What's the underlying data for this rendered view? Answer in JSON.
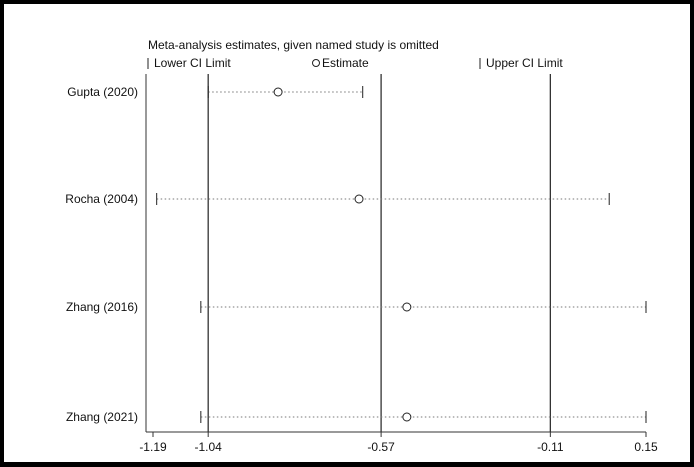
{
  "chart_data": {
    "type": "scatter",
    "title": "Meta-analysis estimates, given named study is omitted",
    "legend": {
      "placement": "top",
      "items": [
        "Lower CI Limit",
        "Estimate",
        "Upper CI Limit"
      ]
    },
    "studies": [
      "Gupta (2020)",
      "Rocha (2004)",
      "Zhang (2016)",
      "Zhang (2021)"
    ],
    "estimates": [
      -0.85,
      -0.63,
      -0.5,
      -0.5
    ],
    "lower_ci": [
      -1.04,
      -1.18,
      -1.06,
      -1.06
    ],
    "upper_ci": [
      -0.62,
      0.05,
      0.15,
      0.15
    ],
    "reference_lines": [
      -1.04,
      -0.57,
      -0.11
    ],
    "xticks": [
      -1.19,
      -1.04,
      -0.57,
      -0.11,
      0.15
    ],
    "xtick_labels": [
      "-1.19",
      "-1.04",
      "-0.57",
      "-0.11",
      "0.15"
    ],
    "xlim": [
      -1.19,
      0.15
    ],
    "grid": false
  }
}
